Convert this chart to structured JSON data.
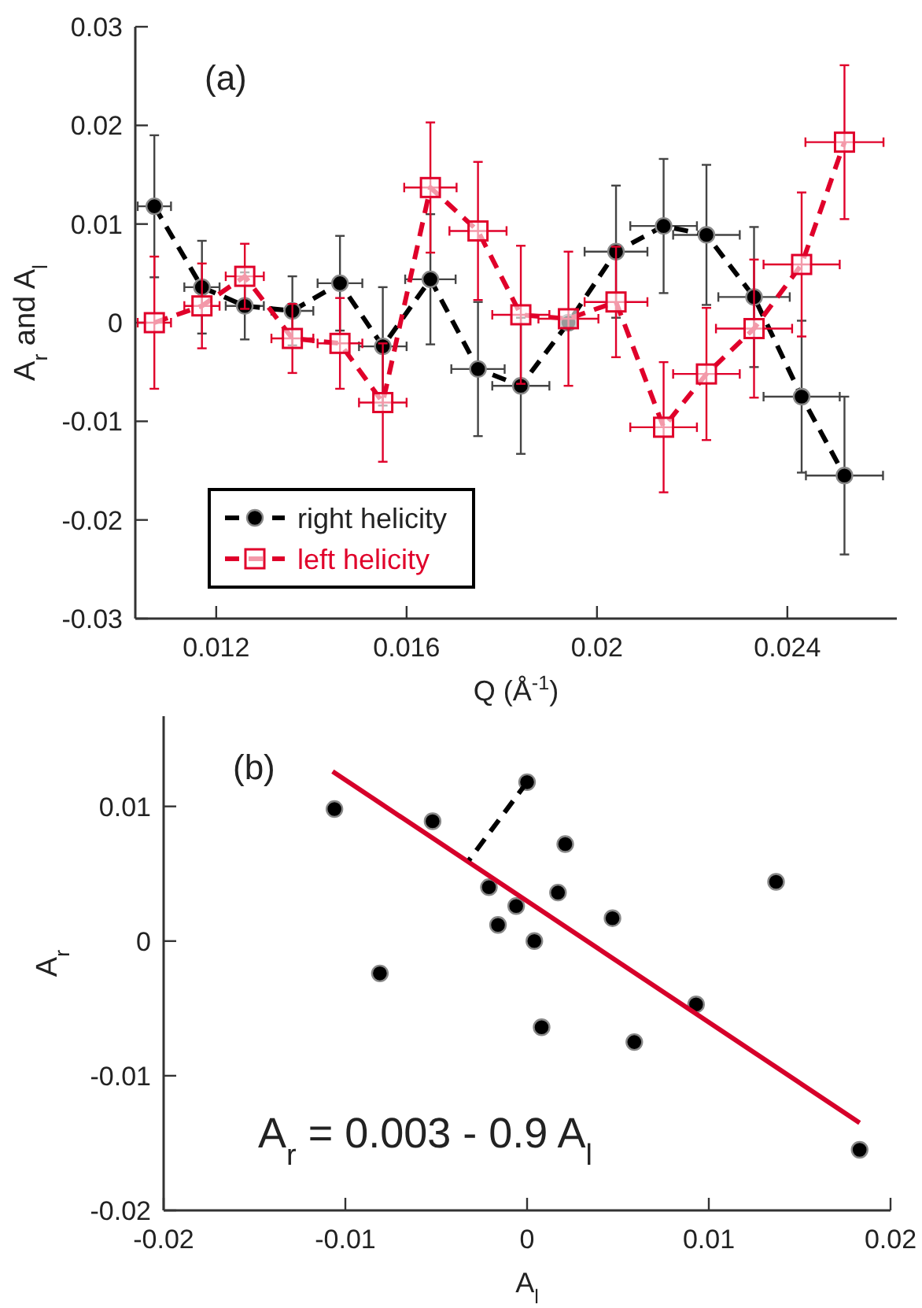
{
  "chart_data": [
    {
      "type": "line",
      "title": "(a)",
      "xlabel": "Q (Å$^{-1}$)",
      "ylabel": "A$_{r}$ and A$_{l}$",
      "xlim": [
        0.0103,
        0.0263
      ],
      "ylim": [
        -0.03,
        0.03
      ],
      "xticks": [
        0.012,
        0.016,
        0.02,
        0.024
      ],
      "yticks": [
        -0.03,
        -0.02,
        -0.01,
        0,
        0.01,
        0.02,
        0.03
      ],
      "legend": "bottom left",
      "line_style": "dashed",
      "series": [
        {
          "name": "right helicity",
          "color": "#000000",
          "marker": "circle",
          "x": [
            0.0107,
            0.0117,
            0.0126,
            0.0136,
            0.0146,
            0.0155,
            0.0165,
            0.0175,
            0.0184,
            0.0194,
            0.0204,
            0.0214,
            0.0223,
            0.0233,
            0.0243,
            0.0252
          ],
          "values": [
            0.0118,
            0.0036,
            0.0017,
            0.0012,
            0.004,
            -0.0024,
            0.0044,
            -0.0047,
            -0.0064,
            0.0,
            0.0072,
            0.0098,
            0.0089,
            0.0026,
            -0.0075,
            -0.0155
          ],
          "errors": [
            0.0072,
            0.0047,
            0.0034,
            0.0035,
            0.0048,
            0.006,
            0.0066,
            0.0068,
            0.0069,
            null,
            0.0067,
            0.0068,
            0.0071,
            0.0071,
            0.0077,
            0.008
          ],
          "xerrors": [
            0.00035,
            0.00037,
            0.0004,
            0.00044,
            0.00047,
            0.0005,
            0.00053,
            0.00056,
            0.0006,
            null,
            0.00066,
            0.0007,
            0.0007,
            0.00075,
            0.0008,
            0.00081
          ]
        },
        {
          "name": "left helicity",
          "color": "#e0002a",
          "marker": "square",
          "x": [
            0.0107,
            0.0117,
            0.0126,
            0.0136,
            0.0146,
            0.0155,
            0.0165,
            0.0175,
            0.0184,
            0.0194,
            0.0204,
            0.0214,
            0.0223,
            0.0233,
            0.0243,
            0.0252
          ],
          "values": [
            0.0,
            0.0017,
            0.0047,
            -0.0016,
            -0.0021,
            -0.0081,
            0.0137,
            0.0093,
            0.0008,
            0.0004,
            0.0021,
            -0.0106,
            -0.0052,
            -0.0006,
            0.0059,
            0.0183
          ],
          "errors": [
            0.0067,
            0.0043,
            0.0033,
            0.0035,
            0.0046,
            0.006,
            0.0066,
            0.007,
            0.007,
            0.0068,
            0.0056,
            0.0066,
            0.0067,
            0.007,
            0.0073,
            0.0078
          ],
          "xerrors": [
            0.00035,
            0.00037,
            0.0004,
            0.00044,
            0.00047,
            0.0005,
            0.00055,
            0.0006,
            0.0006,
            0.00063,
            0.00066,
            0.0007,
            0.0007,
            0.0008,
            0.0008,
            0.00082
          ]
        }
      ]
    },
    {
      "type": "scatter",
      "title": "(b)",
      "xlabel": "A$_{l}$",
      "ylabel": "A$_{r}$",
      "xlim": [
        -0.02,
        0.02
      ],
      "ylim": [
        -0.02,
        0.0167
      ],
      "xticks": [
        -0.02,
        -0.01,
        0,
        0.01,
        0.02
      ],
      "yticks": [
        -0.02,
        -0.01,
        0,
        0.01
      ],
      "annotations": [
        "A$_{r}$ = 0.003 - 0.9 A$_{l}$"
      ],
      "series": [
        {
          "color": "#000000",
          "marker": "circle",
          "x": [
            0.0,
            0.0017,
            0.0047,
            -0.0016,
            -0.0021,
            -0.0081,
            0.0137,
            0.0093,
            0.0008,
            0.0004,
            0.0021,
            -0.0106,
            -0.0052,
            -0.0006,
            0.0059,
            0.0183
          ],
          "values": [
            0.0118,
            0.0036,
            0.0017,
            0.0012,
            0.004,
            -0.0024,
            0.0044,
            -0.0047,
            -0.0064,
            0.0,
            0.0072,
            0.0098,
            0.0089,
            0.0026,
            -0.0075,
            -0.0155
          ]
        },
        {
          "type": "line",
          "color": "#d6002a",
          "marker": "none",
          "line_style": "solid",
          "x": [
            -0.0107,
            0.0183
          ],
          "values": [
            0.0126,
            -0.0135
          ]
        },
        {
          "type": "line",
          "color": "#000000",
          "marker": "none",
          "line_style": "dashed",
          "x": [
            0.0,
            -0.0032
          ],
          "values": [
            0.0118,
            0.006
          ]
        }
      ]
    }
  ]
}
